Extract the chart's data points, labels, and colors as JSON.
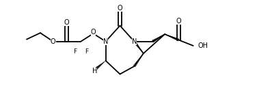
{
  "bg_color": "#ffffff",
  "line_color": "#000000",
  "line_width": 1.3,
  "font_size": 7.0,
  "figsize": [
    3.76,
    1.42
  ],
  "dpi": 100,
  "xlim": [
    0,
    10.5
  ],
  "ylim": [
    -0.5,
    4.0
  ]
}
